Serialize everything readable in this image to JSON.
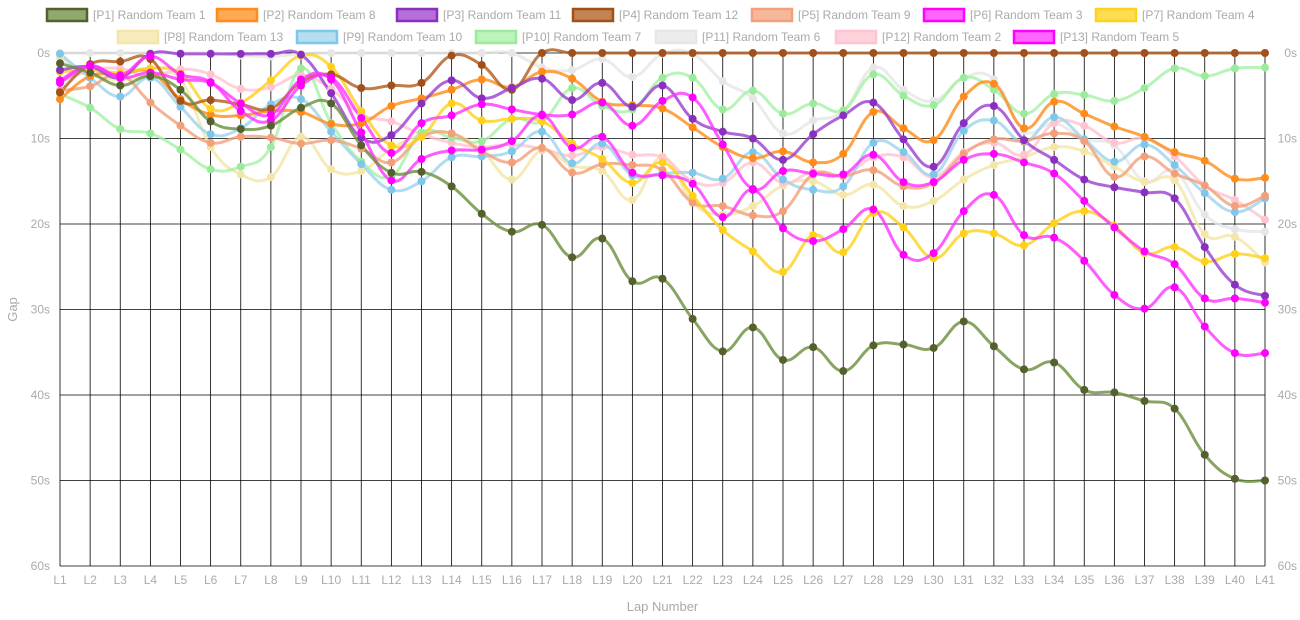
{
  "chart_data": {
    "type": "line",
    "title": "",
    "xlabel": "Lap Number",
    "ylabel": "Gap",
    "y_axis_reversed": true,
    "ylim": [
      0,
      60
    ],
    "y_ticks": [
      "0s",
      "10s",
      "20s",
      "30s",
      "40s",
      "50s",
      "60s"
    ],
    "grid": true,
    "legend_position": "top",
    "categories": [
      "L1",
      "L2",
      "L3",
      "L4",
      "L5",
      "L6",
      "L7",
      "L8",
      "L9",
      "L10",
      "L11",
      "L12",
      "L13",
      "L14",
      "L15",
      "L16",
      "L17",
      "L18",
      "L19",
      "L20",
      "L21",
      "L22",
      "L23",
      "L24",
      "L25",
      "L26",
      "L27",
      "L28",
      "L29",
      "L30",
      "L31",
      "L32",
      "L33",
      "L34",
      "L35",
      "L36",
      "L37",
      "L38",
      "L39",
      "L40",
      "L41"
    ],
    "series": [
      {
        "name": "[P1] Random Team 1",
        "color": "#6b8e3d",
        "marker": "#55602e",
        "values": [
          1.2,
          2.3,
          3.8,
          2.7,
          4.3,
          8.0,
          8.9,
          8.5,
          6.4,
          5.9,
          10.8,
          14.0,
          13.9,
          15.6,
          18.8,
          20.9,
          20.1,
          23.9,
          21.7,
          26.7,
          26.4,
          31.1,
          34.9,
          32.1,
          35.9,
          34.4,
          37.2,
          34.2,
          34.1,
          34.5,
          31.4,
          34.3,
          37.0,
          36.2,
          39.4,
          39.7,
          40.7,
          41.6,
          47.0,
          49.8,
          50.0
        ]
      },
      {
        "name": "[P2] Random Team 8",
        "color": "#ff8c1a",
        "marker": "#ff8c1a",
        "values": [
          5.4,
          2.7,
          2.5,
          2.2,
          5.4,
          7.2,
          7.3,
          6.8,
          6.9,
          8.3,
          8.2,
          6.2,
          5.3,
          4.3,
          3.1,
          4.0,
          2.2,
          3.0,
          5.7,
          6.1,
          6.5,
          8.7,
          11.0,
          12.3,
          11.5,
          12.8,
          11.8,
          6.9,
          8.8,
          10.2,
          5.1,
          3.6,
          8.8,
          5.7,
          7.1,
          8.6,
          9.8,
          11.6,
          12.6,
          14.7,
          14.6
        ]
      },
      {
        "name": "[P3] Random Team 11",
        "color": "#9b3fcf",
        "marker": "#8a2fbf",
        "values": [
          2.0,
          1.6,
          2.9,
          0.1,
          0.1,
          0.1,
          0.1,
          0.1,
          0.2,
          4.7,
          9.9,
          9.6,
          5.9,
          3.2,
          5.3,
          4.1,
          3.0,
          5.5,
          3.5,
          6.3,
          3.8,
          7.7,
          9.2,
          10.0,
          12.5,
          9.5,
          7.3,
          5.8,
          10.1,
          13.3,
          8.2,
          6.2,
          10.2,
          12.5,
          14.8,
          15.7,
          16.3,
          17.0,
          22.7,
          27.1,
          28.4
        ]
      },
      {
        "name": "[P4] Random Team 12",
        "color": "#b05a1a",
        "marker": "#a0501a",
        "values": [
          4.6,
          1.3,
          1.0,
          0.7,
          5.6,
          5.5,
          6.0,
          6.5,
          3.4,
          2.5,
          4.1,
          3.8,
          3.5,
          0.3,
          1.4,
          4.3,
          0.0,
          0.0,
          0.0,
          0.0,
          0.0,
          0.0,
          0.0,
          0.0,
          0.0,
          0.0,
          0.0,
          0.0,
          0.0,
          0.0,
          0.0,
          0.0,
          0.0,
          0.0,
          0.0,
          0.0,
          0.0,
          0.0,
          0.0,
          0.0,
          0.0
        ]
      },
      {
        "name": "[P5] Random Team 9",
        "color": "#f3a07a",
        "marker": "#f3a07a",
        "values": [
          4.4,
          3.9,
          2.5,
          5.8,
          8.5,
          10.5,
          9.8,
          9.9,
          10.6,
          10.2,
          11.2,
          12.8,
          9.8,
          9.4,
          11.5,
          12.8,
          11.1,
          14.0,
          13.0,
          13.1,
          13.7,
          17.5,
          17.9,
          19.0,
          18.5,
          14.2,
          14.4,
          13.7,
          15.6,
          15.2,
          11.8,
          10.1,
          10.3,
          9.4,
          10.3,
          14.5,
          12.1,
          14.1,
          15.5,
          17.9,
          16.7
        ]
      },
      {
        "name": "[P6] Random Team 3",
        "color": "#ff33ff",
        "marker": "#ff00ff",
        "values": [
          3.5,
          1.5,
          2.6,
          0.4,
          2.5,
          3.4,
          6.8,
          7.9,
          3.8,
          2.9,
          7.6,
          11.7,
          8.2,
          7.3,
          6.0,
          6.6,
          7.2,
          7.2,
          5.8,
          8.5,
          5.6,
          5.2,
          10.7,
          15.9,
          13.8,
          14.1,
          14.2,
          11.9,
          15.1,
          15.1,
          12.5,
          11.8,
          12.8,
          14.1,
          17.3,
          20.4,
          23.2,
          24.7,
          28.7,
          28.7,
          29.2
        ]
      },
      {
        "name": "[P7] Random Team 4",
        "color": "#ffd11a",
        "marker": "#ffd11a",
        "values": [
          2.2,
          2.0,
          2.3,
          1.8,
          2.4,
          6.5,
          5.8,
          3.2,
          0.3,
          1.6,
          6.8,
          10.8,
          9.8,
          5.9,
          7.9,
          7.7,
          8.0,
          10.6,
          12.4,
          15.2,
          12.8,
          16.7,
          20.7,
          23.2,
          25.6,
          21.3,
          23.3,
          18.7,
          20.4,
          24.0,
          21.1,
          21.1,
          22.5,
          19.9,
          18.5,
          20.2,
          23.4,
          22.7,
          24.4,
          23.5,
          24.0
        ]
      },
      {
        "name": "[P8] Random Team 13",
        "color": "#f3e6a8",
        "marker": "#f3e6a8",
        "values": [
          0.5,
          2.5,
          3.1,
          2.7,
          3.1,
          11.0,
          14.2,
          14.5,
          9.8,
          13.6,
          13.8,
          11.2,
          9.6,
          9.4,
          11.4,
          14.8,
          11.4,
          13.2,
          13.8,
          17.2,
          12.1,
          17.5,
          18.9,
          17.9,
          15.5,
          15.0,
          16.6,
          15.4,
          17.9,
          17.3,
          14.8,
          13.1,
          12.2,
          11.0,
          11.5,
          13.3,
          15.1,
          14.9,
          21.2,
          21.5,
          24.5
        ]
      },
      {
        "name": "[P9] Random Team 10",
        "color": "#9ed3ec",
        "marker": "#7fc7ea",
        "values": [
          0.1,
          2.9,
          5.1,
          2.9,
          6.3,
          9.5,
          8.8,
          6.0,
          5.4,
          9.2,
          13.0,
          16.0,
          15.0,
          12.2,
          12.1,
          11.5,
          9.2,
          12.9,
          10.6,
          14.3,
          14.1,
          14.0,
          14.7,
          11.6,
          14.8,
          16.0,
          15.6,
          10.5,
          11.6,
          14.2,
          9.1,
          7.9,
          10.4,
          7.5,
          10.1,
          12.7,
          10.7,
          13.1,
          16.4,
          18.6,
          17.0
        ]
      },
      {
        "name": "[P10] Random Team 7",
        "color": "#a6f0a6",
        "marker": "#9ceb9c",
        "values": [
          4.8,
          6.4,
          8.9,
          9.4,
          11.3,
          13.6,
          13.3,
          11.0,
          1.8,
          8.2,
          12.7,
          14.4,
          9.3,
          9.9,
          10.3,
          7.7,
          8.0,
          4.1,
          6.2,
          6.6,
          2.9,
          2.9,
          6.6,
          4.4,
          7.1,
          5.9,
          6.7,
          2.5,
          5.0,
          6.1,
          2.9,
          4.3,
          7.1,
          4.8,
          4.9,
          5.6,
          4.1,
          1.8,
          2.7,
          1.8,
          1.7
        ]
      },
      {
        "name": "[P11] Random Team 6",
        "color": "#e6e6e6",
        "marker": "#e6e6e6",
        "values": [
          0.0,
          0.0,
          0.0,
          0.0,
          0.0,
          0.0,
          0.3,
          0.4,
          0.1,
          0.0,
          0.0,
          0.0,
          0.0,
          0.0,
          0.0,
          0.0,
          1.7,
          2.0,
          0.7,
          2.8,
          0.1,
          0.1,
          3.3,
          5.3,
          9.4,
          7.9,
          6.8,
          1.7,
          4.3,
          5.6,
          2.9,
          3.1,
          9.1,
          8.2,
          10.1,
          10.8,
          15.0,
          13.8,
          18.9,
          20.6,
          20.9
        ]
      },
      {
        "name": "[P12] Random Team 2",
        "color": "#ffc4d0",
        "marker": "#ffc4d0",
        "values": [
          3.3,
          2.1,
          1.8,
          2.8,
          1.9,
          2.5,
          4.2,
          4.0,
          2.6,
          4.2,
          7.2,
          8.0,
          9.5,
          10.5,
          11.0,
          10.7,
          11.2,
          12.0,
          11.0,
          11.9,
          12.2,
          15.0,
          15.2,
          12.8,
          15.2,
          13.9,
          14.3,
          12.2,
          12.2,
          14.5,
          11.6,
          10.5,
          11.9,
          8.2,
          8.5,
          10.5,
          10.0,
          12.1,
          15.5,
          17.2,
          19.5
        ]
      },
      {
        "name": "[P13] Random Team 5",
        "color": "#ff33ff",
        "marker": "#ff00ff",
        "values": [
          3.2,
          1.5,
          2.9,
          2.3,
          3.1,
          3.5,
          5.9,
          7.2,
          3.1,
          3.1,
          9.3,
          14.9,
          12.4,
          11.4,
          11.3,
          10.3,
          7.3,
          11.1,
          9.8,
          14.0,
          14.3,
          15.3,
          19.2,
          16.0,
          20.5,
          22.0,
          20.6,
          18.3,
          23.6,
          23.4,
          18.5,
          16.6,
          21.3,
          21.6,
          24.3,
          28.3,
          29.9,
          27.4,
          32.0,
          35.1,
          35.1
        ]
      }
    ]
  }
}
